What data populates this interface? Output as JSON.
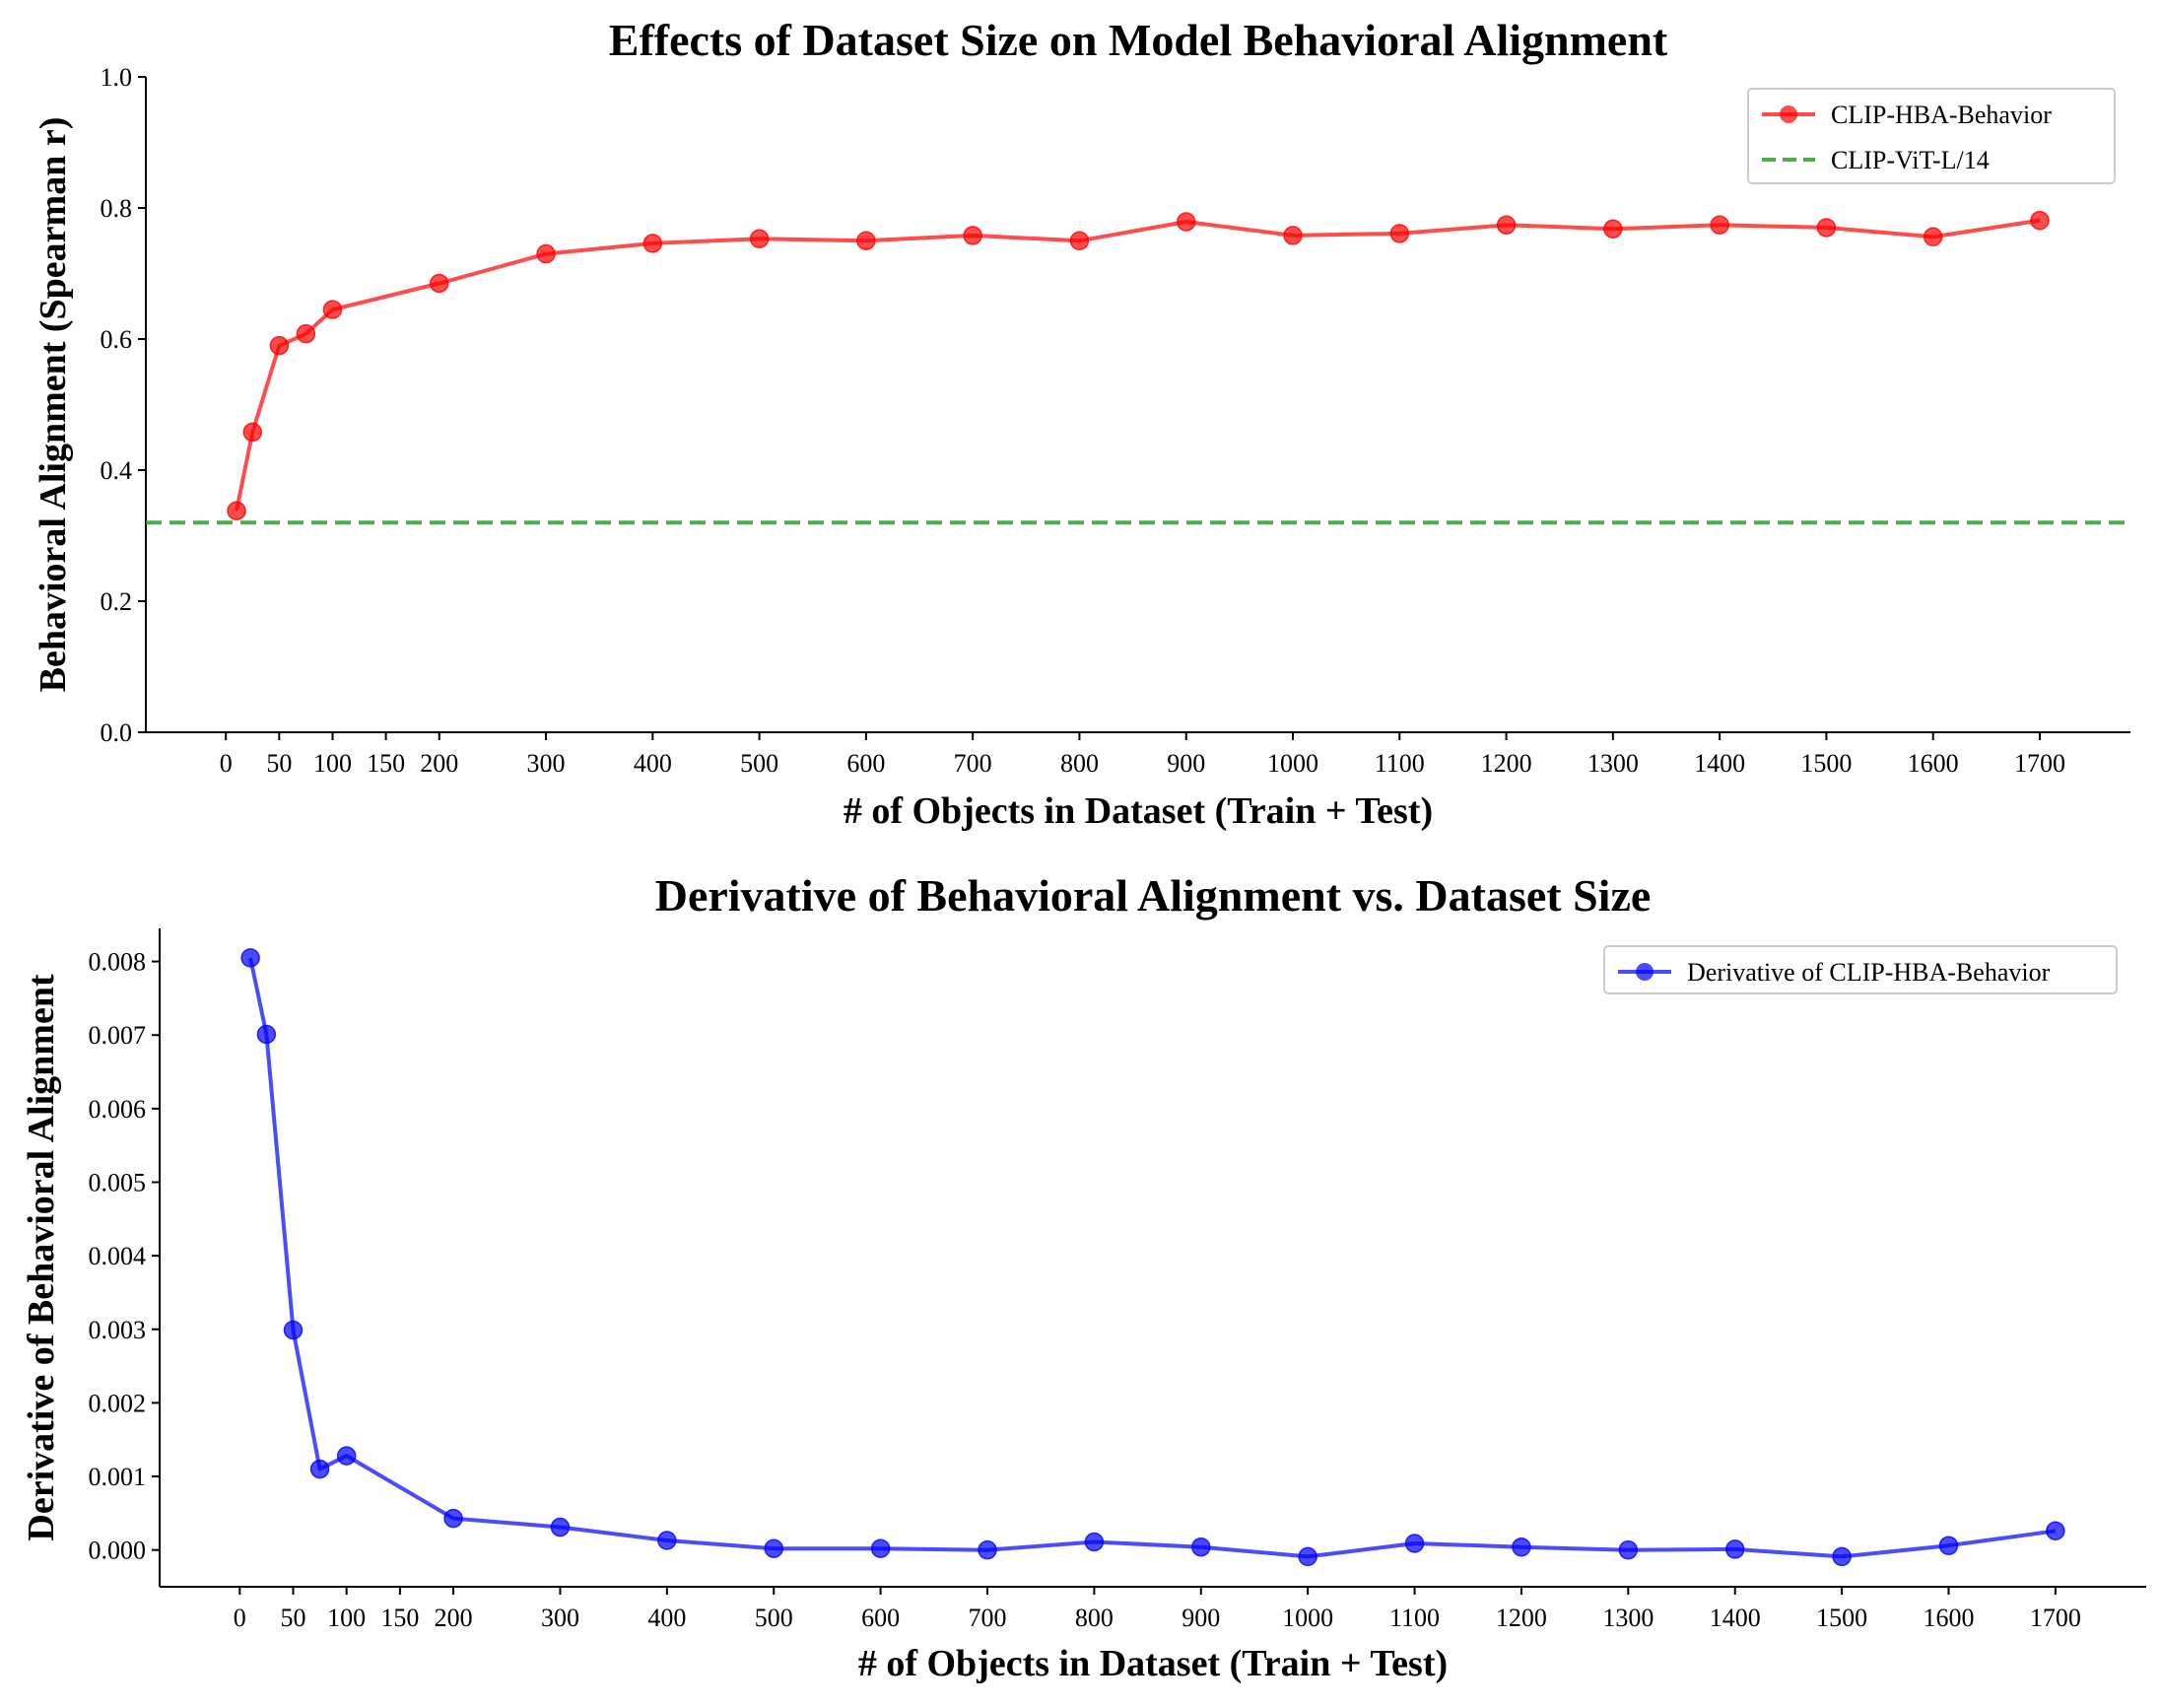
{
  "chart_data": [
    {
      "type": "line",
      "title": "Effects of Dataset Size on Model Behavioral Alignment",
      "xlabel": "# of Objects in Dataset (Train + Test)",
      "ylabel": "Behavioral Alignment (Spearman r)",
      "xlim": [
        -75,
        1785
      ],
      "ylim": [
        0.0,
        1.0
      ],
      "xticks": [
        0,
        50,
        100,
        150,
        200,
        300,
        400,
        500,
        600,
        700,
        800,
        900,
        1000,
        1100,
        1200,
        1300,
        1400,
        1500,
        1600,
        1700
      ],
      "yticks": [
        0.0,
        0.2,
        0.4,
        0.6,
        0.8,
        1.0
      ],
      "ytick_decimals": 1,
      "grid": false,
      "legend_position": "top-right",
      "series": [
        {
          "name": "CLIP-HBA-Behavior",
          "color": "#ff0000",
          "style": "solid",
          "marker": "circle",
          "x": [
            10,
            25,
            50,
            75,
            100,
            200,
            300,
            400,
            500,
            600,
            700,
            800,
            900,
            1000,
            1100,
            1200,
            1300,
            1400,
            1500,
            1600,
            1700
          ],
          "y": [
            0.338,
            0.458,
            0.59,
            0.608,
            0.645,
            0.685,
            0.73,
            0.746,
            0.753,
            0.75,
            0.758,
            0.75,
            0.779,
            0.758,
            0.761,
            0.774,
            0.768,
            0.774,
            0.77,
            0.756,
            0.781
          ]
        },
        {
          "name": "CLIP-ViT-L/14",
          "color": "#2ca02c",
          "style": "dashed",
          "marker": "none",
          "y_const": 0.32
        }
      ]
    },
    {
      "type": "line",
      "title": "Derivative of Behavioral Alignment vs. Dataset Size",
      "xlabel": "# of Objects in Dataset (Train + Test)",
      "ylabel": "Derivative of Behavioral Alignment",
      "xlim": [
        -75,
        1785
      ],
      "ylim": [
        -0.0005,
        0.00845
      ],
      "xticks": [
        0,
        50,
        100,
        150,
        200,
        300,
        400,
        500,
        600,
        700,
        800,
        900,
        1000,
        1100,
        1200,
        1300,
        1400,
        1500,
        1600,
        1700
      ],
      "yticks": [
        0.0,
        0.001,
        0.002,
        0.003,
        0.004,
        0.005,
        0.006,
        0.007,
        0.008
      ],
      "ytick_decimals": 3,
      "grid": false,
      "legend_position": "top-right",
      "series": [
        {
          "name": "Derivative of CLIP-HBA-Behavior",
          "color": "#0000ff",
          "style": "solid",
          "marker": "circle",
          "x": [
            10,
            25,
            50,
            75,
            100,
            200,
            300,
            400,
            500,
            600,
            700,
            800,
            900,
            1000,
            1100,
            1200,
            1300,
            1400,
            1500,
            1600,
            1700
          ],
          "y": [
            0.00805,
            0.00701,
            0.00299,
            0.0011,
            0.00128,
            0.00043,
            0.00031,
            0.00013,
            2e-05,
            2e-05,
            0.0,
            0.00011,
            4e-05,
            -9e-05,
            9e-05,
            4e-05,
            0.0,
            1e-05,
            -9e-05,
            6e-05,
            0.00026
          ]
        }
      ]
    }
  ]
}
